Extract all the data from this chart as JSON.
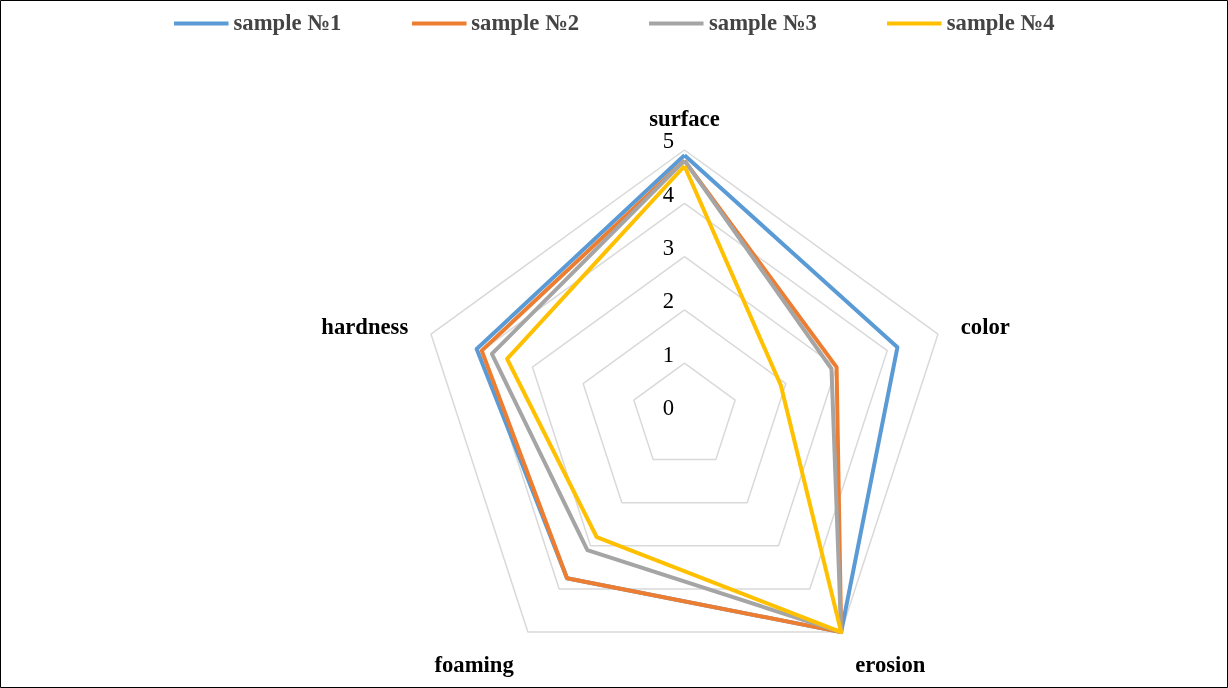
{
  "chart_data": {
    "type": "radar",
    "categories": [
      "surface",
      "color",
      "erosion",
      "foaming",
      "hardness"
    ],
    "series": [
      {
        "name": "sample №1",
        "color": "#5b9bd5",
        "values": [
          4.9,
          4.2,
          5,
          3.75,
          4.1
        ]
      },
      {
        "name": "sample №2",
        "color": "#ed7d31",
        "values": [
          4.8,
          3.0,
          5,
          3.75,
          4.0
        ]
      },
      {
        "name": "sample №3",
        "color": "#a5a5a5",
        "values": [
          4.8,
          2.9,
          5,
          3.1,
          3.8
        ]
      },
      {
        "name": "sample №4",
        "color": "#ffc000",
        "values": [
          4.7,
          1.9,
          5,
          2.8,
          3.5
        ]
      }
    ],
    "ylim": [
      0,
      5
    ],
    "yticks": [
      0,
      1,
      2,
      3,
      4,
      5
    ],
    "grid": true,
    "legend": "top",
    "marker": "none",
    "line_style": "solid"
  }
}
